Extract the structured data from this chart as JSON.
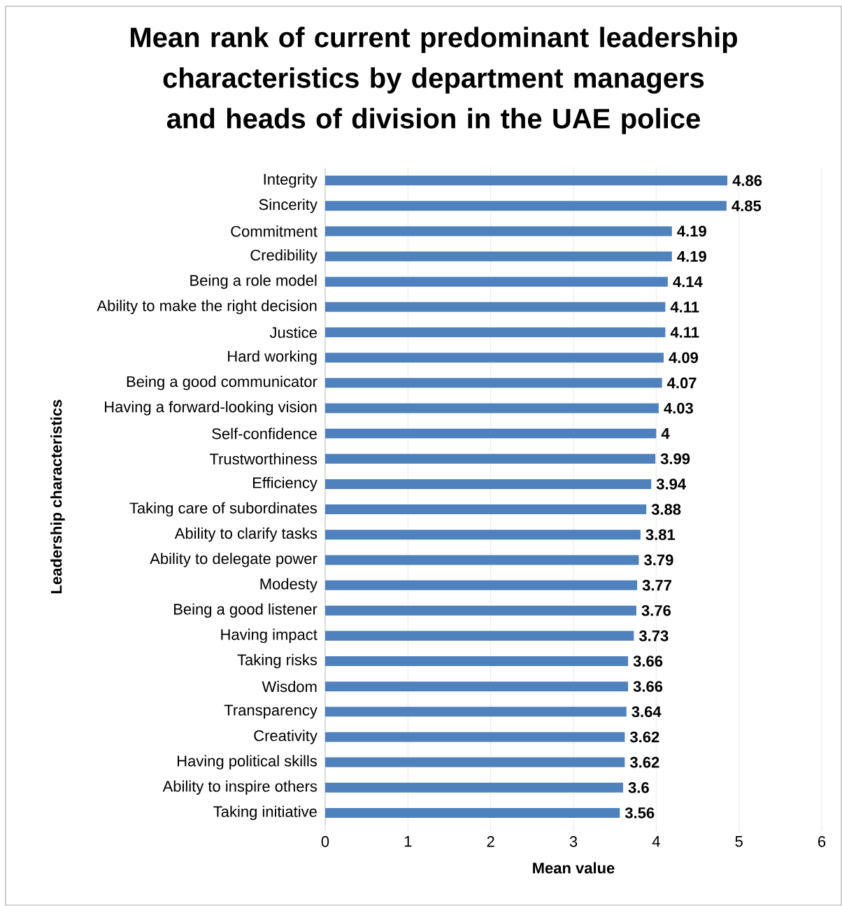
{
  "chart_data": {
    "type": "bar",
    "orientation": "horizontal",
    "title": "Mean rank of current predominant leadership characteristics by department managers and heads of division in the UAE police",
    "xlabel": "Mean value",
    "ylabel": "Leadership characteristics",
    "categories": [
      "Integrity",
      "Sincerity",
      "Commitment",
      "Credibility",
      "Being a role model",
      "Ability to make the right decision",
      "Justice",
      "Hard working",
      "Being a good communicator",
      "Having a forward-looking vision",
      "Self-confidence",
      "Trustworthiness",
      "Efficiency",
      "Taking care of subordinates",
      "Ability to clarify  tasks",
      "Ability to delegate power",
      "Modesty",
      "Being a good listener",
      "Having impact",
      "Taking risks",
      "Wisdom",
      "Transparency",
      "Creativity",
      "Having political skills",
      "Ability to inspire others",
      "Taking initiative"
    ],
    "values": [
      4.86,
      4.85,
      4.19,
      4.19,
      4.14,
      4.11,
      4.11,
      4.09,
      4.07,
      4.03,
      4,
      3.99,
      3.94,
      3.88,
      3.81,
      3.79,
      3.77,
      3.76,
      3.73,
      3.66,
      3.66,
      3.64,
      3.62,
      3.62,
      3.6,
      3.56
    ],
    "color": "#4f81bd",
    "xlim": [
      0,
      6
    ],
    "xticks": [
      0,
      1,
      2,
      3,
      4,
      5,
      6
    ],
    "grid": "x",
    "data_labels": true
  }
}
